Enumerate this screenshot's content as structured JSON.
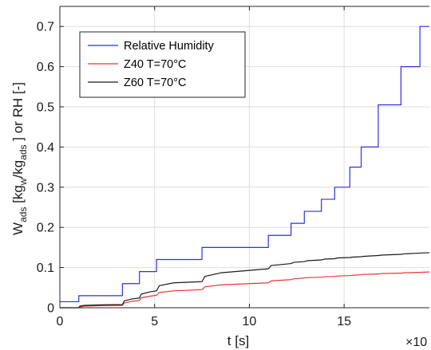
{
  "chart_data": {
    "type": "line",
    "title": "",
    "xlabel": "t [s]",
    "ylabel": {
      "parts": [
        {
          "text": "W",
          "kind": "normal"
        },
        {
          "text": "ads",
          "kind": "sub"
        },
        {
          "text": " [kg",
          "kind": "normal"
        },
        {
          "text": "w",
          "kind": "sub"
        },
        {
          "text": "/kg",
          "kind": "normal"
        },
        {
          "text": "ads",
          "kind": "sub"
        },
        {
          "text": " ] or RH [-]",
          "kind": "normal"
        }
      ]
    },
    "x_exponent_label": "×10",
    "xlim": [
      0,
      19.5
    ],
    "ylim": [
      0,
      0.75
    ],
    "x_ticks": [
      0,
      5,
      10,
      15
    ],
    "x_tick_labels": [
      "0",
      "5",
      "10",
      "15"
    ],
    "y_ticks": [
      0,
      0.1,
      0.2,
      0.3,
      0.4,
      0.5,
      0.6,
      0.7
    ],
    "y_tick_labels": [
      "0",
      "0.1",
      "0.2",
      "0.3",
      "0.4",
      "0.5",
      "0.6",
      "0.7"
    ],
    "grid": true,
    "legend_position": "top-left",
    "series": [
      {
        "name": "Relative Humidity",
        "color": "#2f2fe6",
        "style": "step",
        "points": [
          [
            0,
            0.015
          ],
          [
            1.0,
            0.015
          ],
          [
            1.0,
            0.03
          ],
          [
            3.3,
            0.03
          ],
          [
            3.3,
            0.06
          ],
          [
            4.2,
            0.06
          ],
          [
            4.2,
            0.09
          ],
          [
            5.1,
            0.09
          ],
          [
            5.1,
            0.12
          ],
          [
            7.5,
            0.12
          ],
          [
            7.5,
            0.15
          ],
          [
            11.0,
            0.15
          ],
          [
            11.0,
            0.18
          ],
          [
            12.2,
            0.18
          ],
          [
            12.2,
            0.21
          ],
          [
            12.9,
            0.21
          ],
          [
            12.9,
            0.24
          ],
          [
            13.8,
            0.24
          ],
          [
            13.8,
            0.27
          ],
          [
            14.5,
            0.27
          ],
          [
            14.5,
            0.3
          ],
          [
            15.3,
            0.3
          ],
          [
            15.3,
            0.35
          ],
          [
            15.9,
            0.35
          ],
          [
            15.9,
            0.4
          ],
          [
            16.8,
            0.4
          ],
          [
            16.8,
            0.505
          ],
          [
            18.0,
            0.505
          ],
          [
            18.0,
            0.6
          ],
          [
            19.0,
            0.6
          ],
          [
            19.0,
            0.7
          ],
          [
            19.5,
            0.7
          ]
        ]
      },
      {
        "name": "Z40 T=70°C",
        "color": "#ee3333",
        "style": "curve",
        "points": [
          [
            0,
            0.0
          ],
          [
            1.0,
            0.0
          ],
          [
            1.05,
            0.002
          ],
          [
            1.3,
            0.004
          ],
          [
            2.0,
            0.005
          ],
          [
            3.3,
            0.006
          ],
          [
            3.4,
            0.012
          ],
          [
            3.8,
            0.016
          ],
          [
            4.2,
            0.018
          ],
          [
            4.3,
            0.025
          ],
          [
            4.8,
            0.029
          ],
          [
            5.1,
            0.031
          ],
          [
            5.25,
            0.038
          ],
          [
            6.0,
            0.042
          ],
          [
            7.5,
            0.045
          ],
          [
            7.65,
            0.052
          ],
          [
            8.5,
            0.057
          ],
          [
            10.0,
            0.06
          ],
          [
            11.0,
            0.062
          ],
          [
            11.15,
            0.067
          ],
          [
            12.2,
            0.07
          ],
          [
            12.35,
            0.072
          ],
          [
            12.9,
            0.074
          ],
          [
            13.05,
            0.075
          ],
          [
            13.8,
            0.076
          ],
          [
            13.95,
            0.077
          ],
          [
            14.5,
            0.078
          ],
          [
            14.65,
            0.079
          ],
          [
            15.3,
            0.08
          ],
          [
            15.45,
            0.081
          ],
          [
            15.9,
            0.082
          ],
          [
            16.05,
            0.083
          ],
          [
            16.8,
            0.084
          ],
          [
            16.95,
            0.085
          ],
          [
            18.0,
            0.086
          ],
          [
            18.15,
            0.087
          ],
          [
            19.0,
            0.088
          ],
          [
            19.5,
            0.089
          ]
        ]
      },
      {
        "name": "Z60 T=70°C",
        "color": "#1a1a1a",
        "style": "curve",
        "points": [
          [
            0,
            0.0
          ],
          [
            1.0,
            0.0
          ],
          [
            1.05,
            0.004
          ],
          [
            1.3,
            0.006
          ],
          [
            2.0,
            0.007
          ],
          [
            3.3,
            0.008
          ],
          [
            3.4,
            0.017
          ],
          [
            3.8,
            0.022
          ],
          [
            4.2,
            0.024
          ],
          [
            4.3,
            0.034
          ],
          [
            4.8,
            0.04
          ],
          [
            5.1,
            0.042
          ],
          [
            5.25,
            0.055
          ],
          [
            6.0,
            0.062
          ],
          [
            7.5,
            0.065
          ],
          [
            7.65,
            0.078
          ],
          [
            8.5,
            0.087
          ],
          [
            10.0,
            0.093
          ],
          [
            11.0,
            0.097
          ],
          [
            11.15,
            0.105
          ],
          [
            12.2,
            0.11
          ],
          [
            12.35,
            0.113
          ],
          [
            12.9,
            0.115
          ],
          [
            13.05,
            0.117
          ],
          [
            13.8,
            0.119
          ],
          [
            13.95,
            0.121
          ],
          [
            14.5,
            0.122
          ],
          [
            14.65,
            0.124
          ],
          [
            15.3,
            0.125
          ],
          [
            15.45,
            0.126
          ],
          [
            15.9,
            0.127
          ],
          [
            16.05,
            0.128
          ],
          [
            16.8,
            0.13
          ],
          [
            16.95,
            0.131
          ],
          [
            18.0,
            0.133
          ],
          [
            18.15,
            0.134
          ],
          [
            19.0,
            0.136
          ],
          [
            19.5,
            0.137
          ]
        ]
      }
    ]
  }
}
